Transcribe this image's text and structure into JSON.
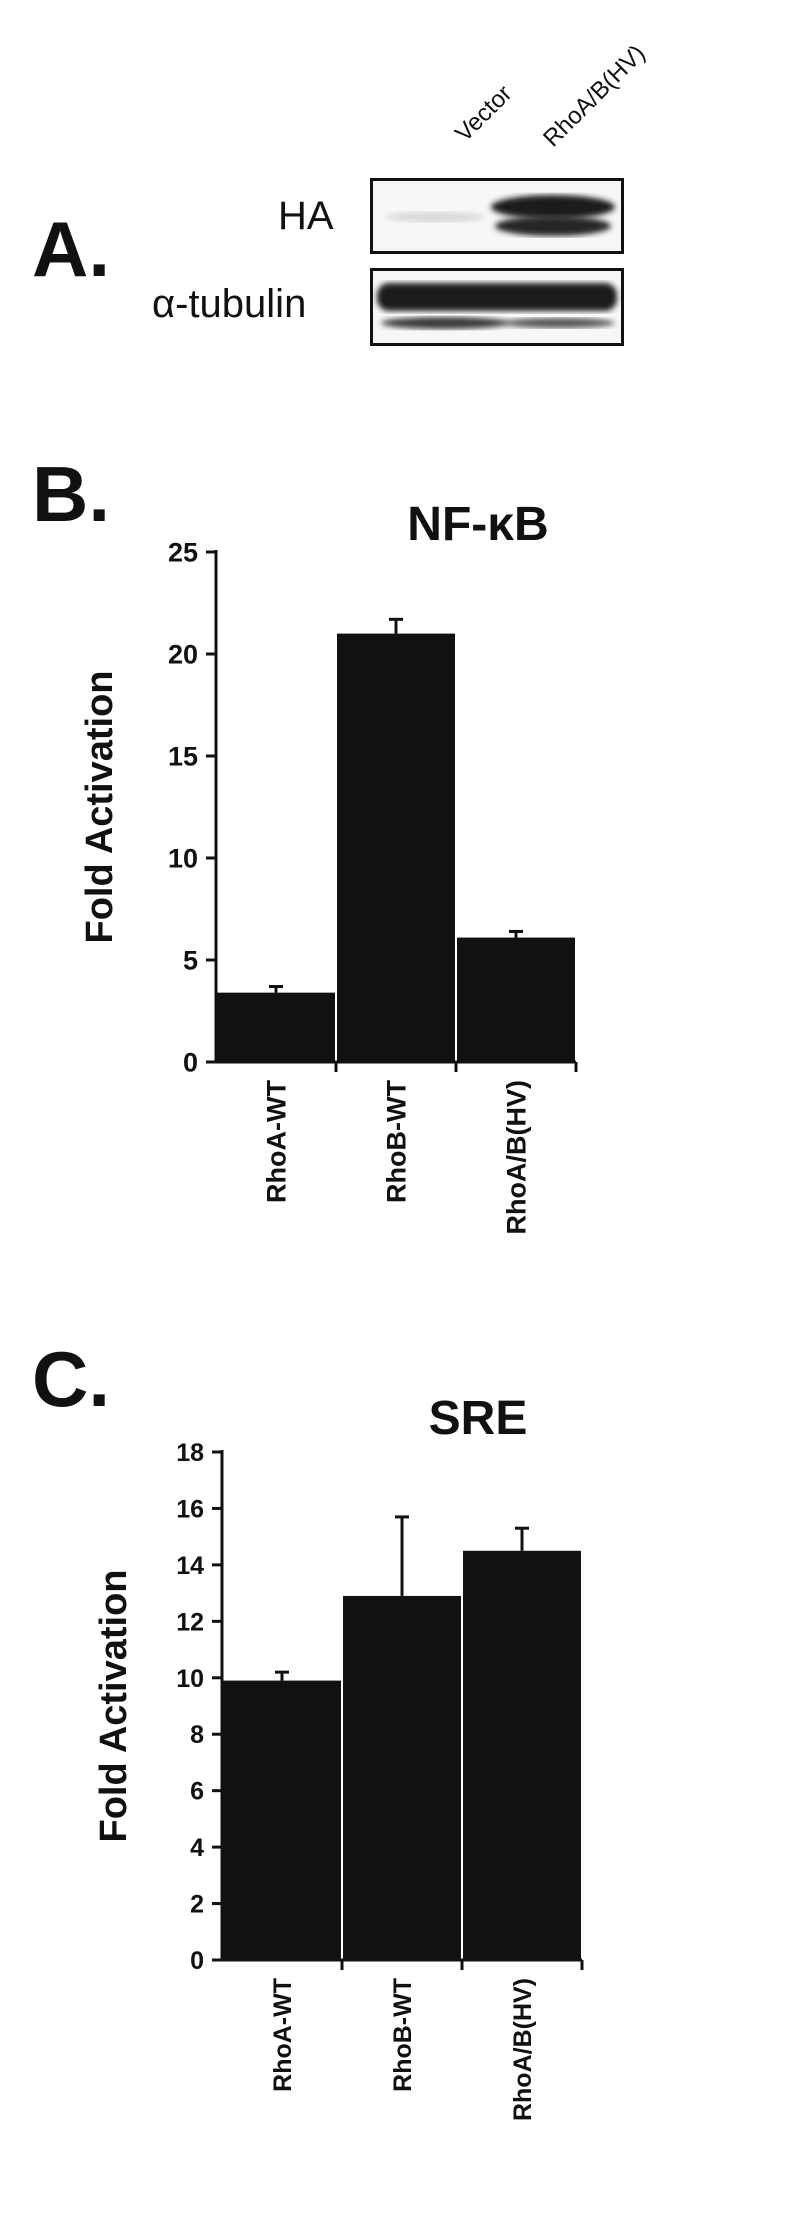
{
  "panel_a": {
    "letter": "A.",
    "lanes": [
      "Vector",
      "RhoA/B(HV)"
    ],
    "rows": [
      {
        "label": "HA",
        "band_intensity": [
          0.03,
          1.0
        ]
      },
      {
        "label": "α-tubulin",
        "band_intensity": [
          1.0,
          1.0
        ]
      }
    ]
  },
  "panel_b": {
    "letter": "B."
  },
  "panel_c": {
    "letter": "C."
  },
  "chart_data": [
    {
      "type": "bar",
      "title": "NF-κB",
      "ylabel": "Fold Activation",
      "xlabel": "",
      "categories": [
        "RhoA-WT",
        "RhoB-WT",
        "RhoA/B(HV)"
      ],
      "values": [
        3.4,
        21.0,
        6.1
      ],
      "errors": [
        0.3,
        0.7,
        0.3
      ],
      "ylim": [
        0,
        25
      ],
      "yticks": [
        0,
        5,
        10,
        15,
        20,
        25
      ],
      "bar_color": "#111111",
      "grid": false
    },
    {
      "type": "bar",
      "title": "SRE",
      "ylabel": "Fold Activation",
      "xlabel": "",
      "categories": [
        "RhoA-WT",
        "RhoB-WT",
        "RhoA/B(HV)"
      ],
      "values": [
        9.9,
        12.9,
        14.5
      ],
      "errors": [
        0.3,
        2.8,
        0.8
      ],
      "ylim": [
        0,
        18
      ],
      "yticks": [
        0,
        2,
        4,
        6,
        8,
        10,
        12,
        14,
        16,
        18
      ],
      "bar_color": "#111111",
      "grid": false
    }
  ]
}
